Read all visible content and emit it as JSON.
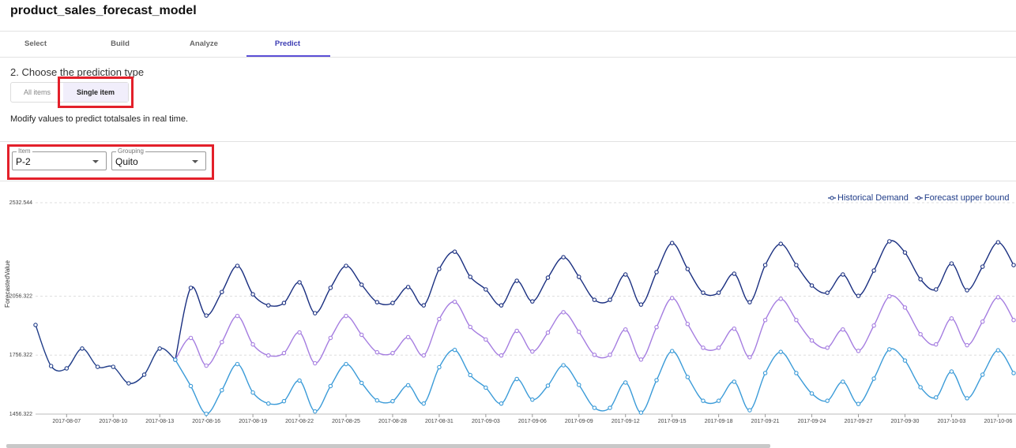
{
  "title": "product_sales_forecast_model",
  "tabs": [
    "Select",
    "Build",
    "Analyze",
    "Predict"
  ],
  "prompt": "2. Choose the prediction type",
  "options": [
    "All items",
    "Single item"
  ],
  "hint": "Modify values to predict totalsales in real time.",
  "filters": [
    {
      "label": "Item",
      "value": "P-2"
    },
    {
      "label": "Grouping",
      "value": "Quito"
    }
  ],
  "chart_data": {
    "type": "line",
    "y_label": "ForecastedValue",
    "legend": "top-right",
    "x": [
      "2017-08-05",
      "2017-08-06",
      "2017-08-07",
      "2017-08-08",
      "2017-08-09",
      "2017-08-10",
      "2017-08-11",
      "2017-08-12",
      "2017-08-13",
      "2017-08-14",
      "2017-08-15",
      "2017-08-16",
      "2017-08-17",
      "2017-08-18",
      "2017-08-19",
      "2017-08-20",
      "2017-08-21",
      "2017-08-22",
      "2017-08-23",
      "2017-08-24",
      "2017-08-25",
      "2017-08-26",
      "2017-08-27",
      "2017-08-28",
      "2017-08-29",
      "2017-08-30",
      "2017-08-31",
      "2017-09-01",
      "2017-09-02",
      "2017-09-03",
      "2017-09-04",
      "2017-09-05",
      "2017-09-06",
      "2017-09-07",
      "2017-09-08",
      "2017-09-09",
      "2017-09-10",
      "2017-09-11",
      "2017-09-12",
      "2017-09-13",
      "2017-09-14",
      "2017-09-15",
      "2017-09-16",
      "2017-09-17",
      "2017-09-18",
      "2017-09-19",
      "2017-09-20",
      "2017-09-21",
      "2017-09-22",
      "2017-09-23",
      "2017-09-24",
      "2017-09-25",
      "2017-09-26",
      "2017-09-27",
      "2017-09-28",
      "2017-09-29",
      "2017-09-30",
      "2017-10-01",
      "2017-10-02",
      "2017-10-03",
      "2017-10-04",
      "2017-10-05",
      "2017-10-06",
      "2017-10-07"
    ],
    "xlim": [
      "2017-08-05",
      "2017-10-07"
    ],
    "xticks": [
      "2017-08-07",
      "2017-08-10",
      "2017-08-13",
      "2017-08-16",
      "2017-08-19",
      "2017-08-22",
      "2017-08-25",
      "2017-08-28",
      "2017-08-31",
      "2017-09-03",
      "2017-09-06",
      "2017-09-09",
      "2017-09-12",
      "2017-09-15",
      "2017-09-18",
      "2017-09-21",
      "2017-09-24",
      "2017-09-27",
      "2017-09-30",
      "2017-10-03",
      "2017-10-06"
    ],
    "ylim": [
      1456.322,
      2532.544
    ],
    "yticks": [
      1456.322,
      1756.322,
      2056.322,
      2532.544
    ],
    "grid": true,
    "series": [
      {
        "name": "Historical Demand",
        "color": "#1f3c88",
        "values": [
          1910,
          1701,
          1689,
          1790,
          1697,
          1697,
          1613,
          1657,
          1790,
          1733,
          null,
          null,
          null,
          null,
          null,
          null,
          null,
          null,
          null,
          null,
          null,
          null,
          null,
          null,
          null,
          null,
          null,
          null,
          null,
          null,
          null,
          null,
          null,
          null,
          null,
          null,
          null,
          null,
          null,
          null,
          null,
          null,
          null,
          null,
          null,
          null,
          null,
          null,
          null,
          null,
          null,
          null,
          null,
          null,
          null,
          null,
          null,
          null,
          null,
          null,
          null,
          null,
          null,
          null
        ]
      },
      {
        "name": "Forecast upper bound",
        "color": "#1a2f80",
        "values": [
          null,
          null,
          null,
          null,
          null,
          null,
          null,
          null,
          null,
          1733,
          2099,
          1958,
          2078,
          2211,
          2066,
          2010,
          2022,
          2127,
          1970,
          2099,
          2211,
          2115,
          2026,
          2022,
          2103,
          2010,
          2195,
          2283,
          2155,
          2091,
          2010,
          2135,
          2030,
          2151,
          2255,
          2155,
          2038,
          2038,
          2167,
          2014,
          2179,
          2327,
          2195,
          2074,
          2074,
          2171,
          2026,
          2215,
          2323,
          2215,
          2111,
          2074,
          2167,
          2058,
          2187,
          2336,
          2279,
          2143,
          2091,
          2223,
          2087,
          2207,
          2331,
          2215
        ]
      },
      {
        "color": "#a57de0",
        "values": [
          null,
          null,
          null,
          null,
          null,
          null,
          null,
          null,
          null,
          1733,
          1844,
          1703,
          1823,
          1956,
          1811,
          1755,
          1767,
          1872,
          1715,
          1844,
          1956,
          1860,
          1771,
          1767,
          1848,
          1755,
          1940,
          2028,
          1900,
          1836,
          1755,
          1880,
          1775,
          1871,
          1975,
          1875,
          1758,
          1758,
          1887,
          1734,
          1899,
          2047,
          1915,
          1794,
          1794,
          1891,
          1746,
          1935,
          2043,
          1935,
          1831,
          1794,
          1887,
          1778,
          1907,
          2056,
          1999,
          1863,
          1811,
          1943,
          1807,
          1927,
          2051,
          1935
        ]
      },
      {
        "color": "#3b9bd8",
        "values": [
          null,
          null,
          null,
          null,
          null,
          null,
          null,
          null,
          null,
          1733,
          1599,
          1458,
          1578,
          1711,
          1566,
          1510,
          1522,
          1627,
          1470,
          1599,
          1711,
          1615,
          1526,
          1522,
          1603,
          1510,
          1695,
          1783,
          1655,
          1591,
          1510,
          1635,
          1530,
          1601,
          1705,
          1605,
          1488,
          1488,
          1617,
          1464,
          1629,
          1777,
          1645,
          1524,
          1524,
          1621,
          1476,
          1665,
          1773,
          1665,
          1561,
          1524,
          1621,
          1508,
          1637,
          1786,
          1729,
          1593,
          1541,
          1673,
          1537,
          1657,
          1781,
          1665
        ]
      }
    ]
  }
}
